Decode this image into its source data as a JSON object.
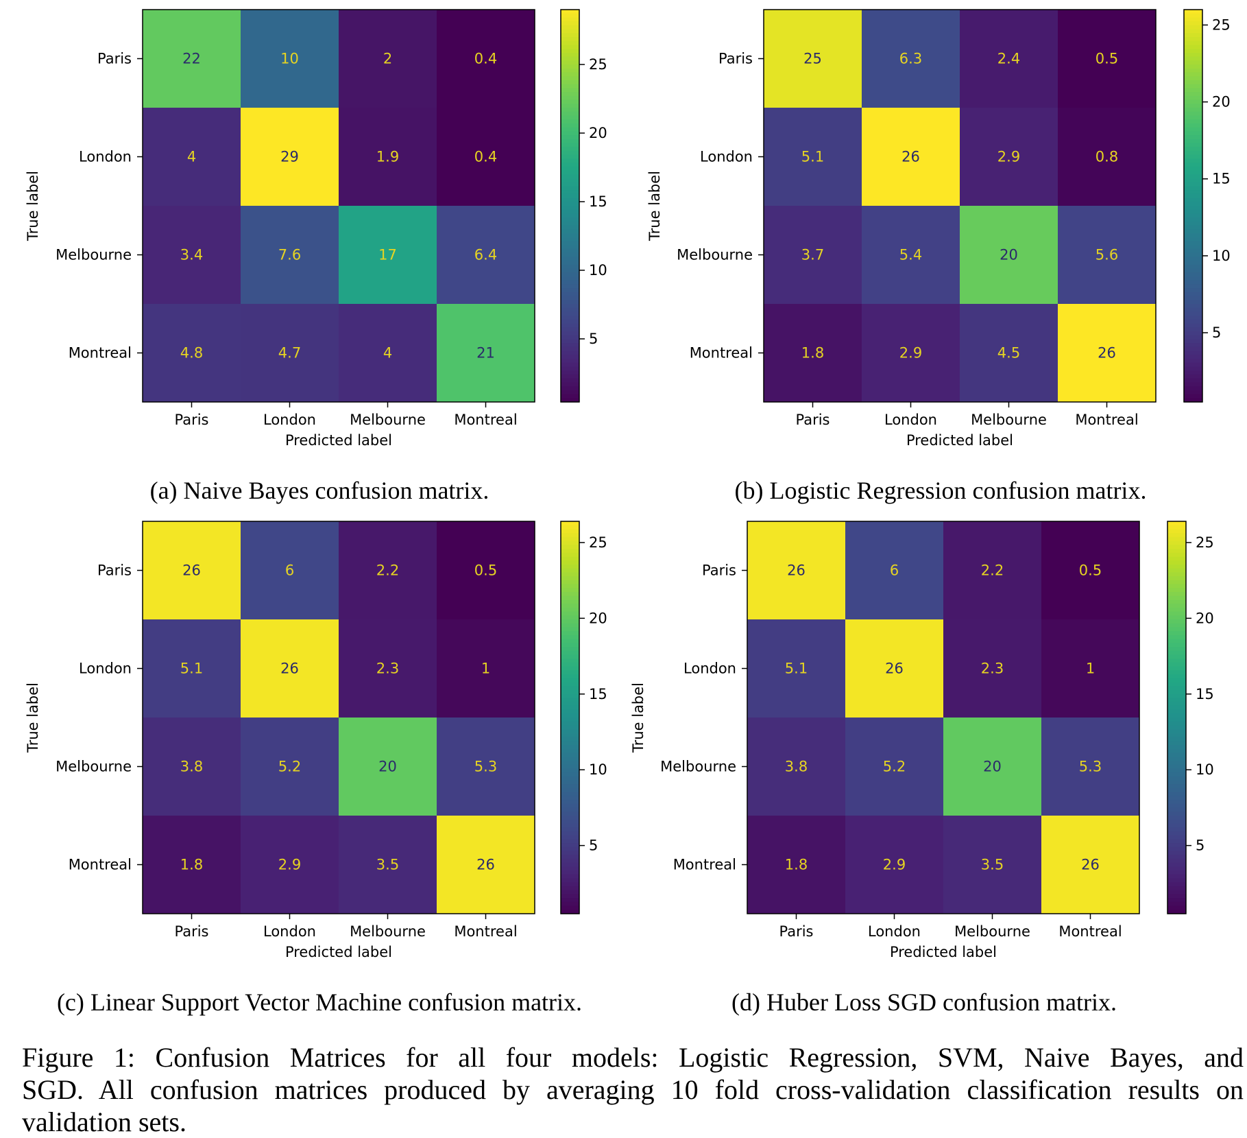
{
  "panels": [
    {
      "caption": "(a) Naive Bayes confusion matrix.",
      "chart_data": {
        "type": "heatmap",
        "row_labels": [
          "Paris",
          "London",
          "Melbourne",
          "Montreal"
        ],
        "col_labels": [
          "Paris",
          "London",
          "Melbourne",
          "Montreal"
        ],
        "values": [
          [
            22,
            10,
            2,
            0.4
          ],
          [
            4,
            29,
            1.9,
            0.4
          ],
          [
            3.4,
            7.6,
            17,
            6.4
          ],
          [
            4.8,
            4.7,
            4,
            21
          ]
        ],
        "xlabel": "Predicted label",
        "ylabel": "True label",
        "colorbar_ticks": [
          5,
          10,
          15,
          20,
          25
        ],
        "colorbar_range": [
          0.4,
          29
        ],
        "colormap": "viridis"
      }
    },
    {
      "caption": "(b) Logistic Regression confusion matrix.",
      "chart_data": {
        "type": "heatmap",
        "row_labels": [
          "Paris",
          "London",
          "Melbourne",
          "Montreal"
        ],
        "col_labels": [
          "Paris",
          "London",
          "Melbourne",
          "Montreal"
        ],
        "values": [
          [
            25,
            6.3,
            2.4,
            0.5
          ],
          [
            5.1,
            26,
            2.9,
            0.8
          ],
          [
            3.7,
            5.4,
            20,
            5.6
          ],
          [
            1.8,
            2.9,
            4.5,
            26
          ]
        ],
        "xlabel": "Predicted label",
        "ylabel": "True label",
        "colorbar_ticks": [
          5,
          10,
          15,
          20,
          25
        ],
        "colorbar_range": [
          0.5,
          26
        ],
        "colormap": "viridis"
      }
    },
    {
      "caption": "(c) Linear Support Vector Machine confusion matrix.",
      "chart_data": {
        "type": "heatmap",
        "row_labels": [
          "Paris",
          "London",
          "Melbourne",
          "Montreal"
        ],
        "col_labels": [
          "Paris",
          "London",
          "Melbourne",
          "Montreal"
        ],
        "values": [
          [
            26,
            6,
            2.2,
            0.5
          ],
          [
            5.1,
            26,
            2.3,
            1
          ],
          [
            3.8,
            5.2,
            20,
            5.3
          ],
          [
            1.8,
            2.9,
            3.5,
            26
          ]
        ],
        "xlabel": "Predicted label",
        "ylabel": "True label",
        "colorbar_ticks": [
          5,
          10,
          15,
          20,
          25
        ],
        "colorbar_range": [
          0.5,
          26.4
        ],
        "colormap": "viridis"
      }
    },
    {
      "caption": "(d) Huber Loss SGD confusion matrix.",
      "chart_data": {
        "type": "heatmap",
        "row_labels": [
          "Paris",
          "London",
          "Melbourne",
          "Montreal"
        ],
        "col_labels": [
          "Paris",
          "London",
          "Melbourne",
          "Montreal"
        ],
        "values": [
          [
            26,
            6,
            2.2,
            0.5
          ],
          [
            5.1,
            26,
            2.3,
            1
          ],
          [
            3.8,
            5.2,
            20,
            5.3
          ],
          [
            1.8,
            2.9,
            3.5,
            26
          ]
        ],
        "xlabel": "Predicted label",
        "ylabel": "True label",
        "colorbar_ticks": [
          5,
          10,
          15,
          20,
          25
        ],
        "colorbar_range": [
          0.5,
          26.4
        ],
        "colormap": "viridis"
      }
    }
  ],
  "figure_caption": {
    "line1": "Figure 1: Confusion Matrices for all four models: Logistic Regression, SVM, Naive Bayes, and",
    "line2": "SGD. All confusion matrices produced by averaging 10 fold cross-validation classification results on",
    "line3": "validation sets."
  },
  "colors": {
    "cell_text_on_dark": "#e6d422",
    "cell_text_on_light": "#2a2a6a",
    "viridis_low": "#440154",
    "viridis_high": "#fde725"
  }
}
